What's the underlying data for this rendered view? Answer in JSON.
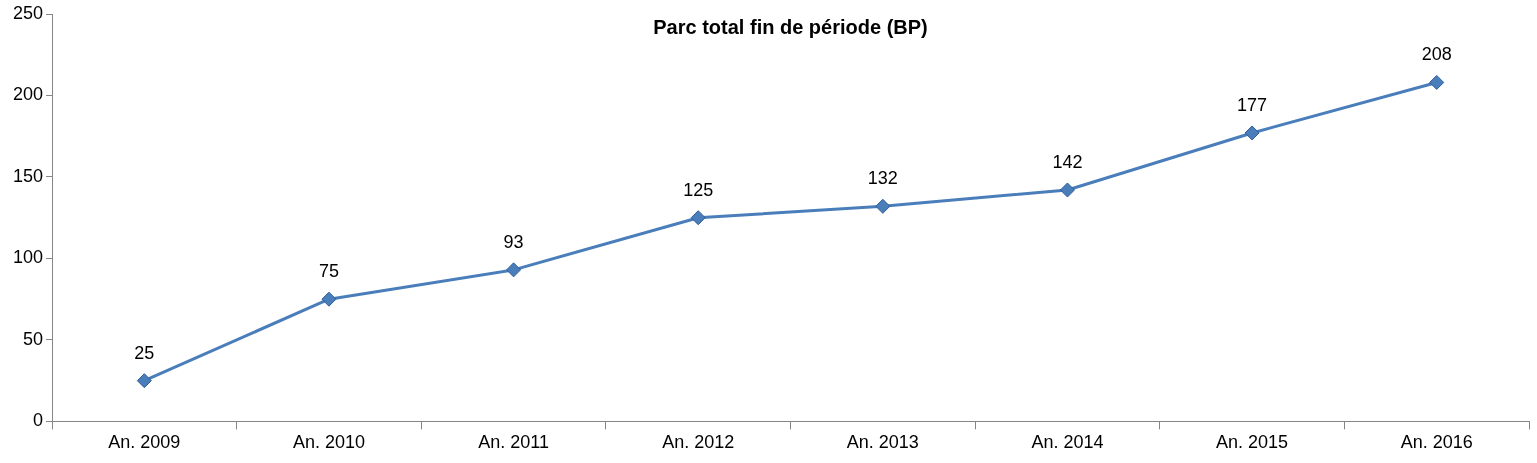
{
  "chart_data": {
    "type": "line",
    "title": "Parc total fin de période (BP)",
    "categories": [
      "An. 2009",
      "An. 2010",
      "An. 2011",
      "An. 2012",
      "An. 2013",
      "An. 2014",
      "An. 2015",
      "An. 2016"
    ],
    "series": [
      {
        "color": "#4a7ebb",
        "values": [
          25,
          75,
          93,
          125,
          132,
          142,
          177,
          208
        ]
      }
    ],
    "ylim": [
      0,
      250
    ],
    "yticks": [
      0,
      50,
      100,
      150,
      200,
      250
    ],
    "grid": false,
    "legend": false,
    "marker": "diamond",
    "line_style": "solid",
    "data_labels": true
  }
}
